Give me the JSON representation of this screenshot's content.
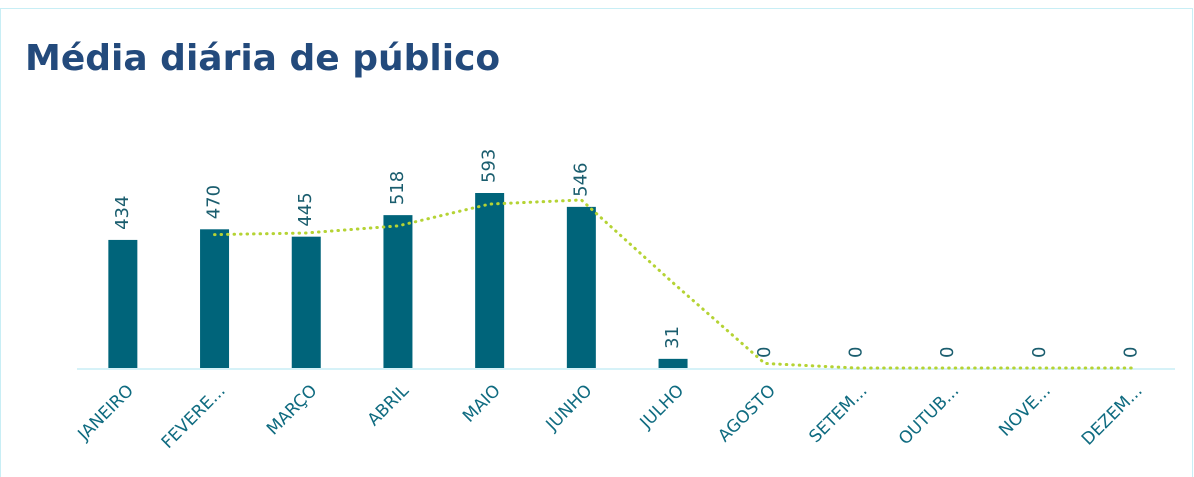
{
  "chart_data": {
    "type": "bar",
    "title": "Média diária de público",
    "categories": [
      "JANEIRO",
      "FEVERE...",
      "MARÇO",
      "ABRIL",
      "MAIO",
      "JUNHO",
      "JULHO",
      "AGOSTO",
      "SETEM...",
      "OUTUB...",
      "NOVE...",
      "DEZEM..."
    ],
    "series": [
      {
        "type": "bar",
        "color": "#00647a",
        "values": [
          434,
          470,
          445,
          518,
          593,
          546,
          31,
          0,
          0,
          0,
          0,
          0
        ]
      },
      {
        "type": "line",
        "color": "#b5d334",
        "values": [
          null,
          452,
          457.5,
          481.5,
          555.5,
          569.5,
          288.5,
          15.5,
          0,
          0,
          0,
          0
        ]
      }
    ]
  }
}
